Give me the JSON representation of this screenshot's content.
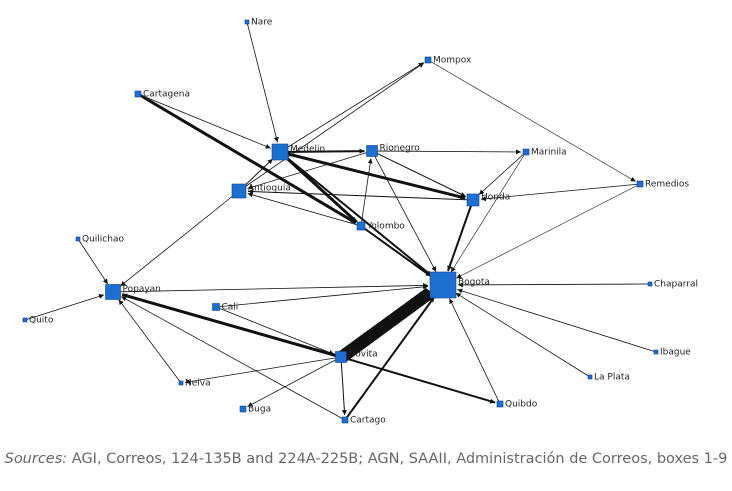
{
  "nodes": [
    {
      "label": "Nare"
    },
    {
      "label": "Mompox"
    },
    {
      "label": "Cartagena"
    },
    {
      "label": "Medelin"
    },
    {
      "label": "Rionegro"
    },
    {
      "label": "Marinila"
    },
    {
      "label": "Remedios"
    },
    {
      "label": "Antioquia"
    },
    {
      "label": "Honda"
    },
    {
      "label": "Yolombo"
    },
    {
      "label": "Quilichao"
    },
    {
      "label": "Bogota"
    },
    {
      "label": "Chaparral"
    },
    {
      "label": "Popayan"
    },
    {
      "label": "Cali"
    },
    {
      "label": "Quito"
    },
    {
      "label": "Novita"
    },
    {
      "label": "Ibague"
    },
    {
      "label": "Neiva"
    },
    {
      "label": "La Plata"
    },
    {
      "label": "Buga"
    },
    {
      "label": "Quibdo"
    },
    {
      "label": "Cartago"
    }
  ],
  "caption": {
    "label": "Sources:",
    "text": " AGI, Correos, 124-135B and 224A-225B; AGN, SAAII, Administración de Correos, boxes 1-9"
  }
}
